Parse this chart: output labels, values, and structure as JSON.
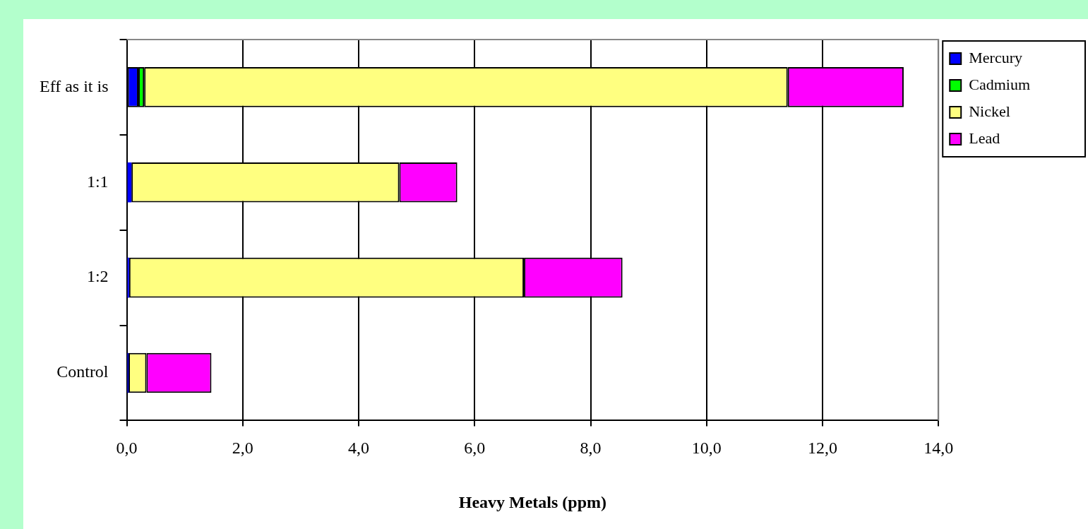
{
  "chart_data": {
    "type": "bar",
    "orientation": "horizontal",
    "stacked": true,
    "xlabel": "Heavy Metals (ppm)",
    "categories": [
      "Eff as it is",
      "1:1",
      "1:2",
      "Control"
    ],
    "series": [
      {
        "name": "Mercury",
        "color": "#0000ff",
        "values": [
          0.2,
          0.08,
          0.04,
          0.03
        ]
      },
      {
        "name": "Cadmium",
        "color": "#00ff00",
        "values": [
          0.1,
          0,
          0,
          0
        ]
      },
      {
        "name": "Nickel",
        "color": "#ffff80",
        "values": [
          11.1,
          4.62,
          6.81,
          0.31
        ]
      },
      {
        "name": "Lead",
        "color": "#ff00ff",
        "values": [
          2.0,
          1.0,
          1.7,
          1.12
        ]
      }
    ],
    "xlim": [
      0,
      14
    ],
    "xticks": [
      {
        "value": 0,
        "label": "0,0"
      },
      {
        "value": 2,
        "label": "2,0"
      },
      {
        "value": 4,
        "label": "4,0"
      },
      {
        "value": 6,
        "label": "6,0"
      },
      {
        "value": 8,
        "label": "8,0"
      },
      {
        "value": 10,
        "label": "10,0"
      },
      {
        "value": 12,
        "label": "12,0"
      },
      {
        "value": 14,
        "label": "14,0"
      }
    ],
    "grid": "x",
    "legend": "right"
  }
}
